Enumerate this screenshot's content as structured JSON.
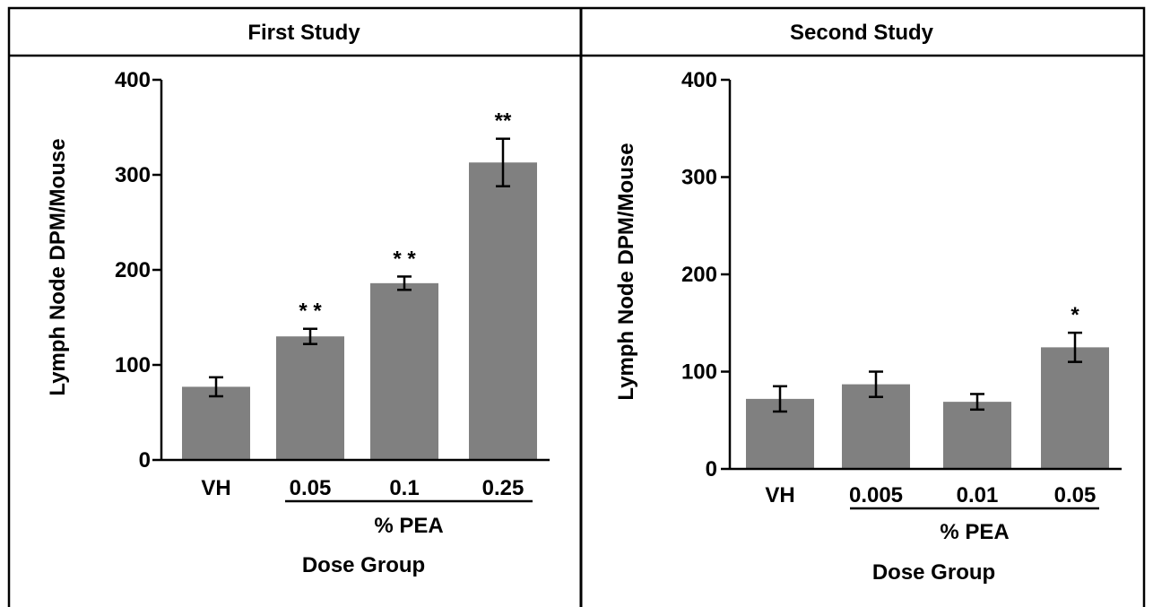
{
  "colors": {
    "bar": "#808080",
    "frame": "#000000",
    "background": "#ffffff"
  },
  "chart_data": [
    {
      "type": "bar",
      "title": "First Study",
      "categories": [
        "VH",
        "0.05",
        "0.1",
        "0.25"
      ],
      "values": [
        77,
        130,
        186,
        313
      ],
      "errors": [
        10,
        8,
        7,
        25
      ],
      "significance": [
        "",
        "* *",
        "* *",
        "**"
      ],
      "group_label": "% PEA",
      "xlabel": "Dose Group",
      "ylabel": "Lymph Node DPM/Mouse",
      "ylim": [
        0,
        400
      ],
      "yticks": [
        "0",
        "100",
        "200",
        "300",
        "400"
      ],
      "grid": false
    },
    {
      "type": "bar",
      "title": "Second Study",
      "categories": [
        "VH",
        "0.005",
        "0.01",
        "0.05"
      ],
      "values": [
        72,
        87,
        69,
        125
      ],
      "errors": [
        13,
        13,
        8,
        15
      ],
      "significance": [
        "",
        "",
        "",
        "*"
      ],
      "group_label": "% PEA",
      "xlabel": "Dose Group",
      "ylabel": "Lymph Node DPM/Mouse",
      "ylim": [
        0,
        400
      ],
      "yticks": [
        "0",
        "100",
        "200",
        "300",
        "400"
      ],
      "grid": false
    }
  ]
}
